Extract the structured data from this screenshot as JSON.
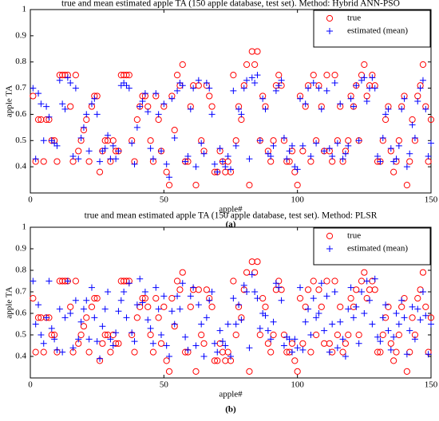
{
  "chart_data": [
    {
      "type": "scatter",
      "title": "true and mean estimated apple TA (150 apple database, test set). Method: Hybrid ANN-PSO",
      "xlabel": "apple#",
      "ylabel": "apple TA",
      "caption": "(a)",
      "xlim": [
        0,
        150
      ],
      "xticks": [
        0,
        50,
        100,
        150
      ],
      "ylim": [
        0.3,
        1
      ],
      "yticks": [
        0.4,
        0.5,
        0.6,
        0.7,
        0.8,
        0.9,
        1
      ],
      "legend": "upper right",
      "x": [
        1,
        2,
        3,
        4,
        5,
        6,
        7,
        8,
        9,
        10,
        11,
        12,
        13,
        14,
        15,
        16,
        17,
        18,
        19,
        20,
        21,
        22,
        23,
        24,
        25,
        26,
        27,
        28,
        29,
        30,
        31,
        32,
        33,
        34,
        35,
        36,
        37,
        38,
        39,
        40,
        41,
        42,
        43,
        44,
        45,
        46,
        47,
        48,
        49,
        50,
        51,
        52,
        53,
        54,
        55,
        56,
        57,
        58,
        59,
        60,
        61,
        62,
        63,
        64,
        65,
        66,
        67,
        68,
        69,
        70,
        71,
        72,
        73,
        74,
        75,
        76,
        77,
        78,
        79,
        80,
        81,
        82,
        83,
        84,
        85,
        86,
        87,
        88,
        89,
        90,
        91,
        92,
        93,
        94,
        95,
        96,
        97,
        98,
        99,
        100,
        101,
        102,
        103,
        104,
        105,
        106,
        107,
        108,
        109,
        110,
        111,
        112,
        113,
        114,
        115,
        116,
        117,
        118,
        119,
        120,
        121,
        122,
        123,
        124,
        125,
        126,
        127,
        128,
        129,
        130,
        131,
        132,
        133,
        134,
        135,
        136,
        137,
        138,
        139,
        140,
        141,
        142,
        143,
        144,
        145,
        146,
        147,
        148,
        149,
        150
      ],
      "series": [
        {
          "name": "true",
          "color": "#ff0000",
          "marker": "circle",
          "values": [
            0.67,
            0.42,
            0.58,
            0.58,
            0.42,
            0.58,
            0.58,
            0.5,
            0.5,
            0.42,
            0.75,
            0.75,
            0.75,
            0.75,
            0.63,
            0.42,
            0.75,
            0.46,
            0.5,
            0.54,
            0.58,
            0.42,
            0.63,
            0.67,
            0.67,
            0.38,
            0.46,
            0.5,
            0.5,
            0.42,
            0.5,
            0.46,
            0.46,
            0.75,
            0.75,
            0.75,
            0.75,
            0.5,
            0.42,
            0.58,
            0.63,
            0.67,
            0.67,
            0.63,
            0.5,
            0.42,
            0.67,
            0.58,
            0.46,
            0.63,
            0.38,
            0.33,
            0.67,
            0.54,
            0.75,
            0.71,
            0.79,
            0.42,
            0.42,
            0.63,
            0.71,
            0.33,
            0.71,
            0.5,
            0.46,
            0.71,
            0.67,
            0.63,
            0.38,
            0.38,
            0.46,
            0.42,
            0.38,
            0.42,
            0.38,
            0.75,
            0.5,
            0.63,
            0.58,
            0.71,
            0.79,
            0.33,
            0.84,
            0.79,
            0.84,
            0.5,
            0.67,
            0.63,
            0.46,
            0.42,
            0.5,
            0.71,
            0.75,
            0.71,
            0.5,
            0.42,
            0.42,
            0.46,
            0.38,
            0.33,
            0.67,
            0.46,
            0.63,
            0.71,
            0.42,
            0.75,
            0.5,
            0.71,
            0.63,
            0.46,
            0.75,
            0.46,
            0.42,
            0.75,
            0.5,
            0.63,
            0.42,
            0.46,
            0.5,
            0.67,
            0.63,
            0.71,
            0.5,
            0.75,
            0.79,
            0.67,
            0.71,
            0.75,
            0.71,
            0.42,
            0.42,
            0.5,
            0.58,
            0.63,
            0.46,
            0.38,
            0.42,
            0.5,
            0.63,
            0.67,
            0.33,
            0.42,
            0.58,
            0.5,
            0.67,
            0.71,
            0.79,
            0.63,
            0.42,
            0.58
          ]
        },
        {
          "name": "estimated (mean)",
          "color": "#0000ff",
          "marker": "plus",
          "values": [
            0.7,
            0.43,
            0.68,
            0.64,
            0.5,
            0.63,
            0.59,
            0.5,
            0.49,
            0.48,
            0.73,
            0.64,
            0.62,
            0.74,
            0.72,
            0.44,
            0.7,
            0.43,
            0.51,
            0.55,
            0.6,
            0.46,
            0.64,
            0.66,
            0.6,
            0.42,
            0.46,
            0.47,
            0.52,
            0.43,
            0.48,
            0.43,
            0.46,
            0.71,
            0.72,
            0.71,
            0.7,
            0.49,
            0.41,
            0.55,
            0.63,
            0.65,
            0.68,
            0.61,
            0.47,
            0.43,
            0.68,
            0.6,
            0.46,
            0.64,
            0.41,
            0.36,
            0.66,
            0.51,
            0.69,
            0.72,
            0.71,
            0.42,
            0.44,
            0.62,
            0.7,
            0.4,
            0.73,
            0.49,
            0.45,
            0.72,
            0.7,
            0.6,
            0.41,
            0.38,
            0.47,
            0.42,
            0.4,
            0.44,
            0.39,
            0.69,
            0.48,
            0.62,
            0.6,
            0.7,
            0.73,
            0.43,
            0.74,
            0.72,
            0.75,
            0.5,
            0.66,
            0.62,
            0.45,
            0.44,
            0.48,
            0.69,
            0.71,
            0.73,
            0.51,
            0.43,
            0.46,
            0.48,
            0.4,
            0.39,
            0.66,
            0.48,
            0.64,
            0.7,
            0.44,
            0.72,
            0.49,
            0.7,
            0.62,
            0.46,
            0.69,
            0.47,
            0.44,
            0.72,
            0.49,
            0.64,
            0.43,
            0.45,
            0.48,
            0.66,
            0.63,
            0.71,
            0.5,
            0.73,
            0.74,
            0.65,
            0.7,
            0.74,
            0.7,
            0.44,
            0.42,
            0.51,
            0.6,
            0.62,
            0.47,
            0.42,
            0.43,
            0.48,
            0.62,
            0.66,
            0.4,
            0.45,
            0.56,
            0.51,
            0.65,
            0.7,
            0.73,
            0.62,
            0.44,
            0.49
          ]
        }
      ]
    },
    {
      "type": "scatter",
      "title": "true and mean estimated apple TA (150 apple database, test set). Method: PLSR",
      "xlabel": "apple#",
      "ylabel": "apple TA",
      "caption": "(b)",
      "xlim": [
        0,
        150
      ],
      "xticks": [
        0,
        50,
        100,
        150
      ],
      "ylim": [
        0.3,
        1
      ],
      "yticks": [
        0.4,
        0.5,
        0.6,
        0.7,
        0.8,
        0.9,
        1
      ],
      "legend": "upper right",
      "x": [
        1,
        2,
        3,
        4,
        5,
        6,
        7,
        8,
        9,
        10,
        11,
        12,
        13,
        14,
        15,
        16,
        17,
        18,
        19,
        20,
        21,
        22,
        23,
        24,
        25,
        26,
        27,
        28,
        29,
        30,
        31,
        32,
        33,
        34,
        35,
        36,
        37,
        38,
        39,
        40,
        41,
        42,
        43,
        44,
        45,
        46,
        47,
        48,
        49,
        50,
        51,
        52,
        53,
        54,
        55,
        56,
        57,
        58,
        59,
        60,
        61,
        62,
        63,
        64,
        65,
        66,
        67,
        68,
        69,
        70,
        71,
        72,
        73,
        74,
        75,
        76,
        77,
        78,
        79,
        80,
        81,
        82,
        83,
        84,
        85,
        86,
        87,
        88,
        89,
        90,
        91,
        92,
        93,
        94,
        95,
        96,
        97,
        98,
        99,
        100,
        101,
        102,
        103,
        104,
        105,
        106,
        107,
        108,
        109,
        110,
        111,
        112,
        113,
        114,
        115,
        116,
        117,
        118,
        119,
        120,
        121,
        122,
        123,
        124,
        125,
        126,
        127,
        128,
        129,
        130,
        131,
        132,
        133,
        134,
        135,
        136,
        137,
        138,
        139,
        140,
        141,
        142,
        143,
        144,
        145,
        146,
        147,
        148,
        149,
        150
      ],
      "series": [
        {
          "name": "true",
          "color": "#ff0000",
          "marker": "circle",
          "values": [
            0.67,
            0.42,
            0.58,
            0.58,
            0.42,
            0.58,
            0.58,
            0.5,
            0.5,
            0.42,
            0.75,
            0.75,
            0.75,
            0.75,
            0.63,
            0.42,
            0.75,
            0.46,
            0.5,
            0.54,
            0.58,
            0.42,
            0.63,
            0.67,
            0.67,
            0.38,
            0.46,
            0.5,
            0.5,
            0.42,
            0.5,
            0.46,
            0.46,
            0.75,
            0.75,
            0.75,
            0.75,
            0.5,
            0.42,
            0.58,
            0.63,
            0.67,
            0.67,
            0.63,
            0.5,
            0.42,
            0.67,
            0.58,
            0.46,
            0.63,
            0.38,
            0.33,
            0.67,
            0.54,
            0.75,
            0.71,
            0.79,
            0.42,
            0.42,
            0.63,
            0.71,
            0.33,
            0.71,
            0.5,
            0.46,
            0.71,
            0.67,
            0.63,
            0.38,
            0.38,
            0.46,
            0.42,
            0.38,
            0.42,
            0.38,
            0.75,
            0.5,
            0.63,
            0.58,
            0.71,
            0.79,
            0.33,
            0.84,
            0.79,
            0.84,
            0.5,
            0.67,
            0.63,
            0.46,
            0.42,
            0.5,
            0.71,
            0.75,
            0.71,
            0.5,
            0.42,
            0.42,
            0.46,
            0.38,
            0.33,
            0.67,
            0.46,
            0.63,
            0.71,
            0.42,
            0.75,
            0.5,
            0.71,
            0.63,
            0.46,
            0.75,
            0.46,
            0.42,
            0.75,
            0.5,
            0.63,
            0.42,
            0.46,
            0.5,
            0.67,
            0.63,
            0.71,
            0.5,
            0.75,
            0.79,
            0.67,
            0.71,
            0.75,
            0.71,
            0.42,
            0.42,
            0.5,
            0.58,
            0.63,
            0.46,
            0.38,
            0.42,
            0.5,
            0.63,
            0.67,
            0.33,
            0.42,
            0.58,
            0.5,
            0.67,
            0.71,
            0.79,
            0.63,
            0.42,
            0.58
          ]
        },
        {
          "name": "estimated (mean)",
          "color": "#0000ff",
          "marker": "plus",
          "values": [
            0.75,
            0.55,
            0.64,
            0.5,
            0.46,
            0.58,
            0.75,
            0.53,
            0.48,
            0.43,
            0.62,
            0.42,
            0.58,
            0.75,
            0.6,
            0.44,
            0.66,
            0.48,
            0.56,
            0.62,
            0.66,
            0.48,
            0.72,
            0.58,
            0.47,
            0.39,
            0.54,
            0.62,
            0.7,
            0.48,
            0.45,
            0.51,
            0.61,
            0.66,
            0.7,
            0.58,
            0.74,
            0.51,
            0.47,
            0.64,
            0.76,
            0.65,
            0.7,
            0.57,
            0.53,
            0.46,
            0.72,
            0.62,
            0.5,
            0.68,
            0.45,
            0.4,
            0.61,
            0.55,
            0.68,
            0.62,
            0.74,
            0.49,
            0.43,
            0.68,
            0.72,
            0.45,
            0.64,
            0.55,
            0.4,
            0.58,
            0.66,
            0.7,
            0.46,
            0.42,
            0.52,
            0.47,
            0.45,
            0.55,
            0.4,
            0.67,
            0.55,
            0.64,
            0.57,
            0.73,
            0.7,
            0.44,
            0.78,
            0.7,
            0.67,
            0.53,
            0.6,
            0.59,
            0.52,
            0.48,
            0.56,
            0.74,
            0.72,
            0.66,
            0.45,
            0.49,
            0.48,
            0.42,
            0.48,
            0.44,
            0.72,
            0.43,
            0.56,
            0.62,
            0.5,
            0.67,
            0.58,
            0.6,
            0.74,
            0.52,
            0.68,
            0.42,
            0.55,
            0.7,
            0.44,
            0.56,
            0.48,
            0.4,
            0.62,
            0.72,
            0.58,
            0.63,
            0.46,
            0.7,
            0.6,
            0.75,
            0.66,
            0.55,
            0.76,
            0.49,
            0.47,
            0.58,
            0.64,
            0.52,
            0.43,
            0.49,
            0.6,
            0.55,
            0.66,
            0.58,
            0.41,
            0.52,
            0.63,
            0.48,
            0.62,
            0.57,
            0.7,
            0.59,
            0.41,
            0.55
          ]
        }
      ]
    }
  ]
}
